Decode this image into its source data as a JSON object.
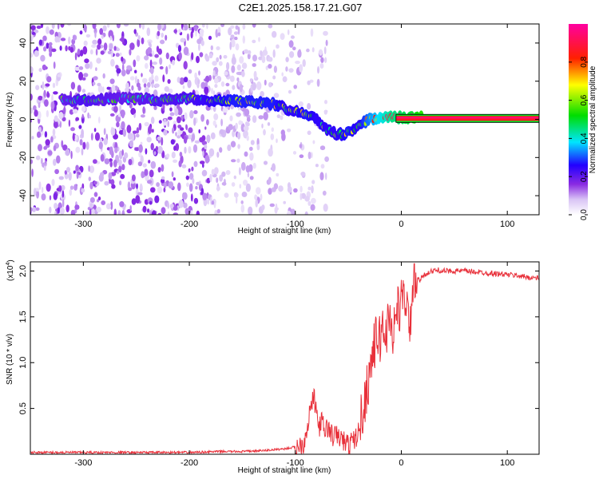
{
  "title": "C2E1.2025.158.17.21.G07",
  "chart_data": [
    {
      "type": "heatmap",
      "xlabel": "Height of straight line (km)",
      "ylabel": "Frequency (Hz)",
      "xlim": [
        -350,
        130
      ],
      "ylim": [
        -50,
        50
      ],
      "xticks": [
        -300,
        -200,
        -100,
        0,
        100
      ],
      "yticks": [
        -40,
        -20,
        0,
        20,
        40
      ],
      "colorbar": {
        "label": "Normalized spectral amplitude",
        "range": [
          0,
          1
        ],
        "ticks": [
          "0.0",
          "0.2",
          "0.4",
          "0.6",
          "0.8"
        ],
        "tick_values": [
          0,
          0.2,
          0.4,
          0.6,
          0.8
        ],
        "colormap": "rainbow (white-violet-blue-cyan-green-yellow-red-magenta)"
      },
      "ridge": {
        "x": [
          -320,
          -300,
          -260,
          -220,
          -200,
          -180,
          -160,
          -140,
          -120,
          -110,
          -100,
          -90,
          -80,
          -70,
          -60,
          -50,
          -40,
          -30,
          -20,
          -10,
          0,
          10,
          20,
          40,
          60,
          80,
          100,
          130
        ],
        "y": [
          10,
          10,
          11,
          10,
          11,
          10,
          10,
          9,
          8,
          6,
          4,
          3,
          0,
          -5,
          -8,
          -7,
          -3,
          0,
          1,
          1,
          1,
          1,
          1,
          1,
          1,
          1,
          1,
          1
        ],
        "amplitude": [
          0.35,
          0.4,
          0.35,
          0.4,
          0.4,
          0.45,
          0.5,
          0.5,
          0.5,
          0.45,
          0.45,
          0.5,
          0.45,
          0.45,
          0.45,
          0.5,
          0.45,
          0.6,
          0.7,
          0.8,
          0.85,
          0.9,
          1.0,
          1.0,
          1.0,
          1.0,
          1.0,
          1.0
        ]
      },
      "noise_region": {
        "x_from": -350,
        "x_to": -100
      }
    },
    {
      "type": "line",
      "xlabel": "Height of straight line (km)",
      "ylabel": "SNR (10 * v/v)",
      "scale_label": "(x10",
      "scale_exponent": "4",
      "xlim": [
        -350,
        130
      ],
      "ylim": [
        0,
        2.1
      ],
      "xticks": [
        -300,
        -200,
        -100,
        0,
        100
      ],
      "yticks": [
        "0.5",
        "1.0",
        "1.5",
        "2.0"
      ],
      "ytick_values": [
        0.5,
        1.0,
        1.5,
        2.0
      ],
      "series": [
        {
          "color": "#e8303a",
          "x": [
            -350,
            -300,
            -250,
            -200,
            -170,
            -150,
            -130,
            -120,
            -110,
            -100,
            -92,
            -88,
            -85,
            -82,
            -80,
            -78,
            -75,
            -72,
            -70,
            -65,
            -60,
            -55,
            -50,
            -45,
            -42,
            -40,
            -38,
            -35,
            -32,
            -30,
            -28,
            -25,
            -22,
            -20,
            -18,
            -15,
            -12,
            -10,
            -8,
            -5,
            -2,
            0,
            3,
            5,
            8,
            10,
            12,
            15,
            18,
            20,
            25,
            30,
            35,
            40,
            50,
            60,
            70,
            80,
            90,
            100,
            110,
            120,
            130
          ],
          "y": [
            0.02,
            0.02,
            0.02,
            0.02,
            0.03,
            0.03,
            0.04,
            0.05,
            0.06,
            0.08,
            0.12,
            0.35,
            0.55,
            0.6,
            0.45,
            0.3,
            0.35,
            0.25,
            0.3,
            0.2,
            0.2,
            0.15,
            0.1,
            0.15,
            0.2,
            0.25,
            0.4,
            0.55,
            0.75,
            0.9,
            1.05,
            1.2,
            1.3,
            1.25,
            1.4,
            1.3,
            1.45,
            1.5,
            1.3,
            1.55,
            1.6,
            1.65,
            1.7,
            1.75,
            1.2,
            1.8,
            1.85,
            1.9,
            1.9,
            1.95,
            1.98,
            2.0,
            2.01,
            2.0,
            2.0,
            2.0,
            1.99,
            1.98,
            1.97,
            1.96,
            1.95,
            1.93,
            1.92
          ]
        }
      ]
    }
  ]
}
